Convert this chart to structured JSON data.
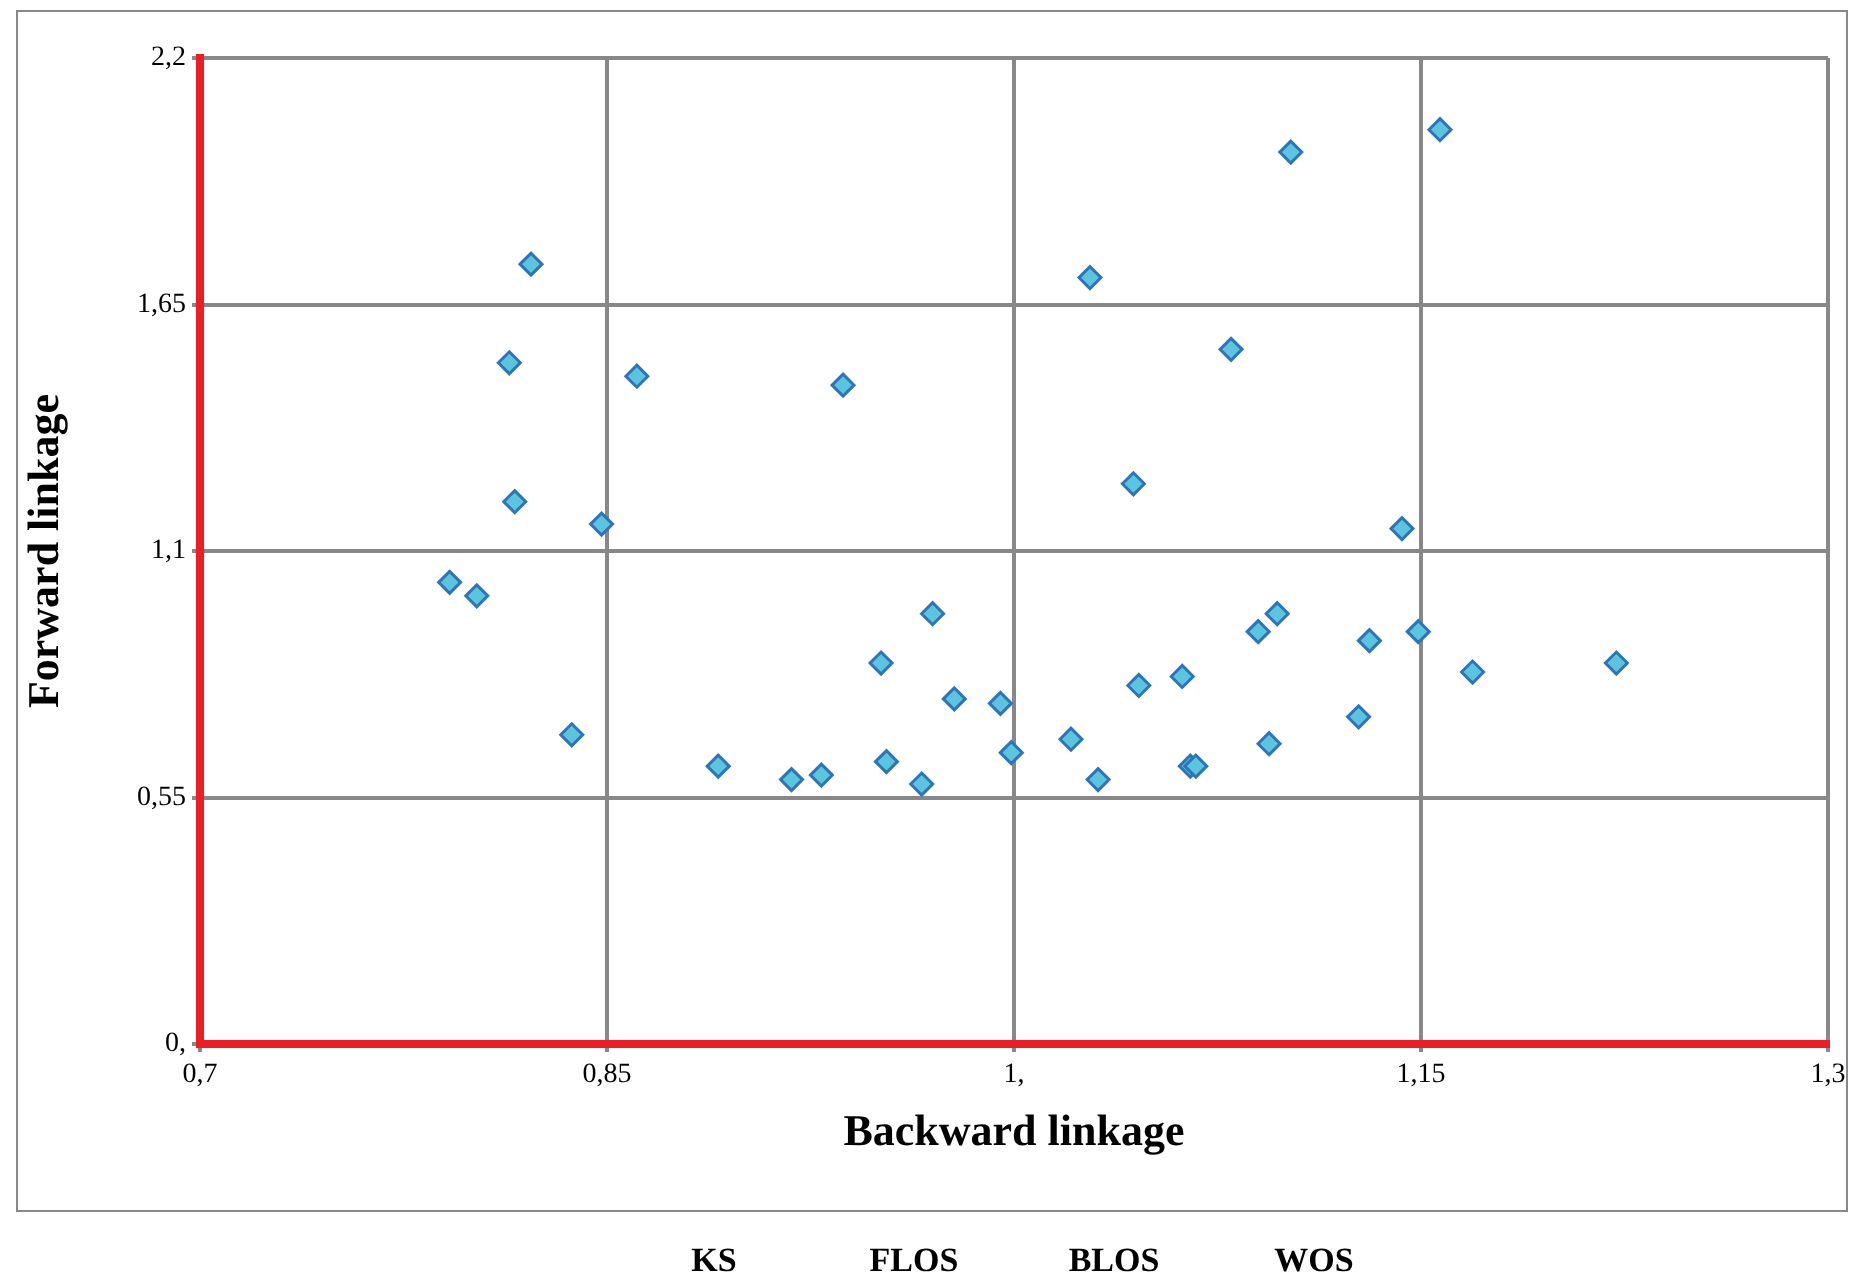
{
  "chart_data": {
    "type": "scatter",
    "xlabel": "Backward linkage",
    "ylabel": "Forward linkage",
    "xlim": [
      0.7,
      1.3
    ],
    "ylim": [
      0,
      2.2
    ],
    "xticks": [
      {
        "value": 0.7,
        "label": "0,7"
      },
      {
        "value": 0.85,
        "label": "0,85"
      },
      {
        "value": 1,
        "label": "1,"
      },
      {
        "value": 1.15,
        "label": "1,15"
      },
      {
        "value": 1.3,
        "label": "1,3"
      }
    ],
    "yticks": [
      {
        "value": 0,
        "label": "0,"
      },
      {
        "value": 0.55,
        "label": "0,55"
      },
      {
        "value": 1.1,
        "label": "1,1"
      },
      {
        "value": 1.65,
        "label": "1,65"
      },
      {
        "value": 2.2,
        "label": "2,2"
      }
    ],
    "grid": true,
    "legend": false,
    "marker": "diamond",
    "annotations": [
      "KS",
      "FLOS",
      "BLOS",
      "WOS"
    ],
    "series": [
      {
        "color": "#5bc5e0",
        "x": [
          0.792,
          0.802,
          0.814,
          0.816,
          0.822,
          0.837,
          0.848,
          0.861,
          0.891,
          0.918,
          0.929,
          0.937,
          0.951,
          0.953,
          0.966,
          0.97,
          0.978,
          0.995,
          0.999,
          1.021,
          1.028,
          1.031,
          1.044,
          1.046,
          1.062,
          1.065,
          1.067,
          1.08,
          1.09,
          1.094,
          1.097,
          1.102,
          1.127,
          1.131,
          1.143,
          1.149,
          1.157,
          1.169,
          1.222
        ],
        "values": [
          1.03,
          1.0,
          1.52,
          1.21,
          1.74,
          0.69,
          1.16,
          1.49,
          0.62,
          0.59,
          0.6,
          1.47,
          0.85,
          0.63,
          0.58,
          0.96,
          0.77,
          0.76,
          0.65,
          0.68,
          1.71,
          0.59,
          1.25,
          0.8,
          0.82,
          0.62,
          0.62,
          1.55,
          0.92,
          0.67,
          0.96,
          1.99,
          0.73,
          0.9,
          1.15,
          0.92,
          2.04,
          0.83,
          0.85
        ]
      }
    ]
  }
}
